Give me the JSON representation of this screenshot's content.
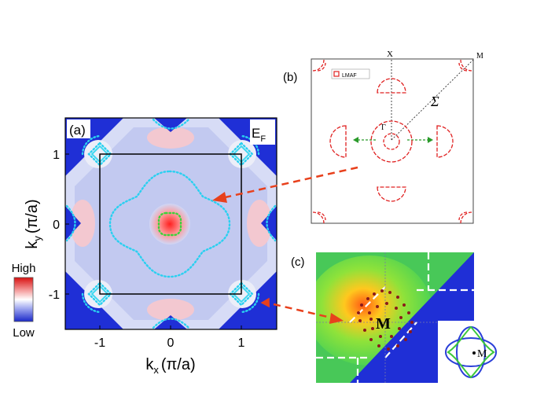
{
  "panel_a": {
    "label": "(a)",
    "corner_label_main": "E",
    "corner_label_sub": "F",
    "x_ticks": [
      "-1",
      "0",
      "1"
    ],
    "y_ticks": [
      "1",
      "0",
      "-1"
    ],
    "x_axis_main": "k",
    "x_axis_sub": "x",
    "x_axis_unit": "(π/a)",
    "y_axis_main": "k",
    "y_axis_sub": "y",
    "y_axis_unit": "(π/a)",
    "colorbar_high": "High",
    "colorbar_low": "Low"
  },
  "panel_b": {
    "label": "(b)",
    "x_point": "X",
    "m_point": "M",
    "gamma_point": "Γ",
    "sigma_label": "Σ",
    "legend_entry": "LMAF"
  },
  "panel_c": {
    "label": "(c)",
    "m_point": "M",
    "inset_m_point": "M"
  },
  "colors": {
    "map_blue": "#1f2fd6",
    "fermi_cyan": "#2ad0f0",
    "fermi_green": "#3cd23c",
    "marker_red": "#e02020",
    "arrow_red": "#e8401c",
    "inset_blue": "#2a3fd8",
    "inset_green": "#3cc83c",
    "frame_black": "#000000"
  }
}
